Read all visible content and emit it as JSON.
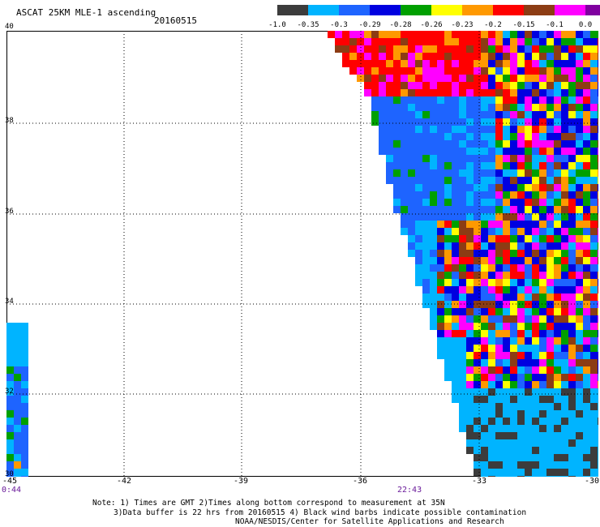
{
  "header": {
    "title": "ASCAT 25KM MLE-1 ascending",
    "date": "20160515"
  },
  "colorbar": {
    "colors": [
      "#3c3c3c",
      "#00b4ff",
      "#1e64ff",
      "#0000e0",
      "#00a000",
      "#ffff00",
      "#ff9900",
      "#ff0000",
      "#8c3c14",
      "#ff00ff",
      "#8000a0"
    ],
    "labels": [
      "-1.0",
      "-0.35",
      "-0.3",
      "-0.29",
      "-0.28",
      "-0.26",
      "-0.23",
      "-0.2",
      "-0.15",
      "-0.1",
      "0.0"
    ]
  },
  "map": {
    "lat_labels": [
      "40",
      "38",
      "36",
      "34",
      "32",
      "30"
    ],
    "lon_labels": [
      "-45",
      "-42",
      "-39",
      "-36",
      "-33",
      "-30"
    ],
    "time_labels": [
      "0:44",
      "22:43"
    ]
  },
  "footer": {
    "line1": "Note: 1) Times are GMT 2)Times along bottom correspond to measurement at 35N",
    "line2": "3)Data buffer is 22 hrs from 20160515 4) Black wind barbs indicate possible contamination",
    "line3": "NOAA/NESDIS/Center for Satellite Applications and Research"
  }
}
